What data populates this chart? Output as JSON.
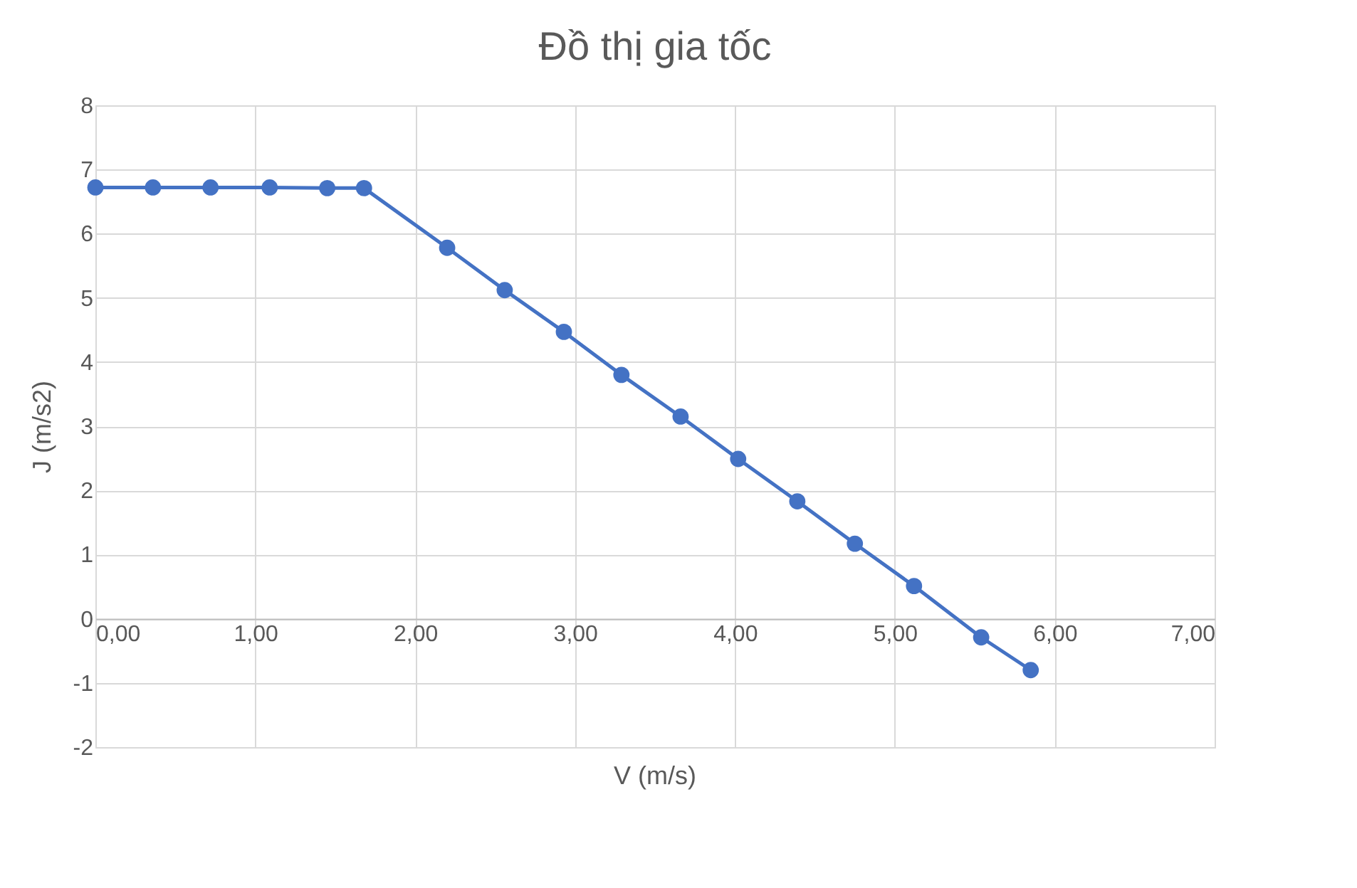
{
  "chart_data": {
    "type": "line",
    "title": "Đồ thị gia tốc",
    "xlabel": "V (m/s)",
    "ylabel": "J (m/s2)",
    "x": [
      0,
      0.36,
      0.72,
      1.09,
      1.45,
      1.68,
      2.2,
      2.56,
      2.93,
      3.29,
      3.66,
      4.02,
      4.39,
      4.75,
      5.12,
      5.54,
      5.85
    ],
    "series": [
      {
        "color": "#4472c4",
        "values": [
          6.72,
          6.72,
          6.72,
          6.72,
          6.71,
          6.71,
          5.78,
          5.12,
          4.47,
          3.8,
          3.15,
          2.49,
          1.83,
          1.17,
          0.51,
          -0.29,
          -0.8
        ]
      }
    ],
    "xlim": [
      0,
      7
    ],
    "ylim": [
      -2,
      8
    ],
    "xticks": [
      {
        "value": 0,
        "label": "0,00"
      },
      {
        "value": 1,
        "label": "1,00"
      },
      {
        "value": 2,
        "label": "2,00"
      },
      {
        "value": 3,
        "label": "3,00"
      },
      {
        "value": 4,
        "label": "4,00"
      },
      {
        "value": 5,
        "label": "5,00"
      },
      {
        "value": 6,
        "label": "6,00"
      },
      {
        "value": 7,
        "label": "7,00"
      }
    ],
    "yticks": [
      -2,
      -1,
      0,
      1,
      2,
      3,
      4,
      5,
      6,
      7,
      8
    ],
    "grid": true,
    "marker": "circle",
    "line_style": "solid"
  }
}
